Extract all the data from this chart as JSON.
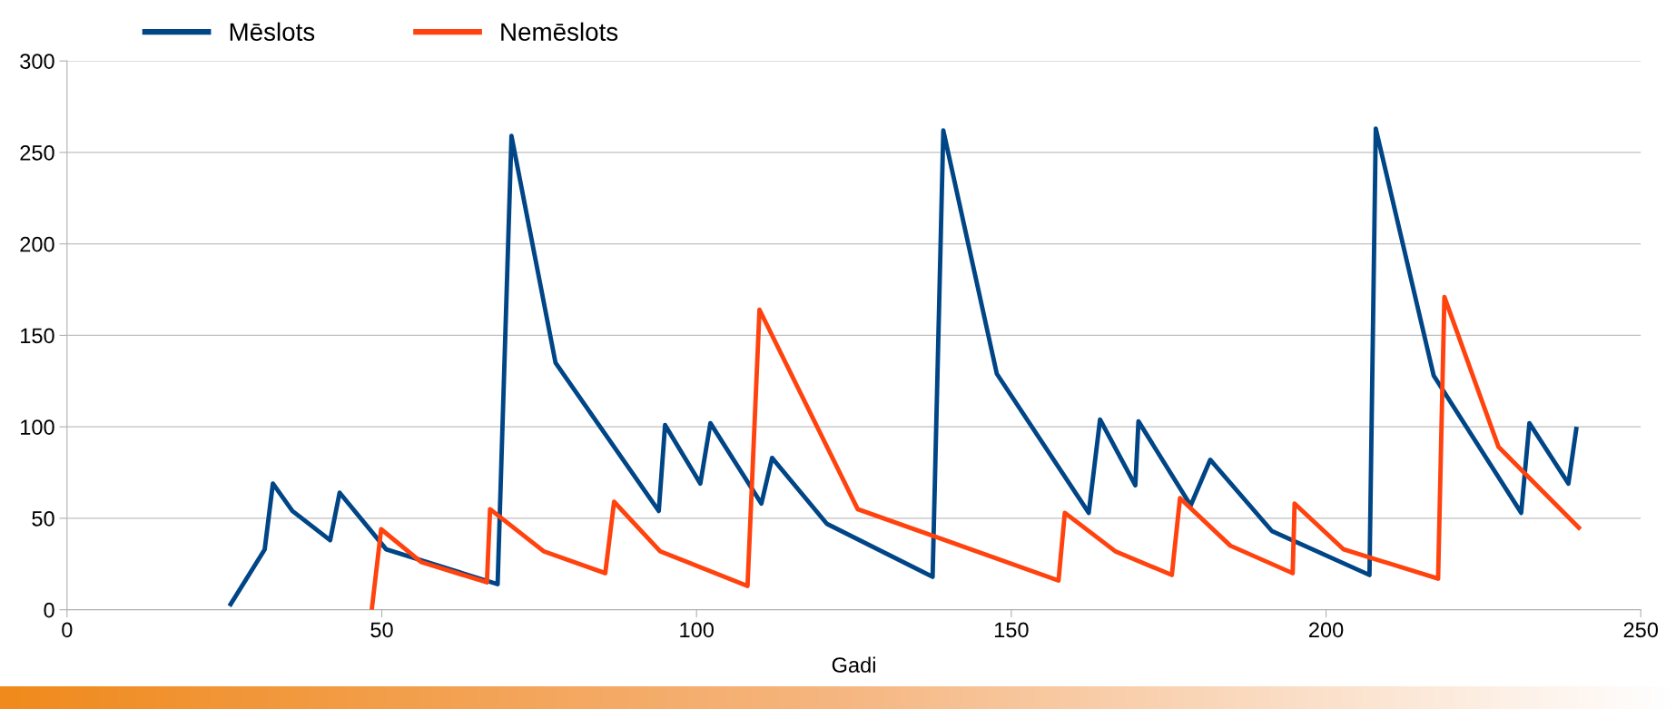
{
  "chart_data": {
    "type": "line",
    "xlabel": "Gadi",
    "xlim": [
      0,
      250
    ],
    "xticks": [
      0,
      50,
      100,
      150,
      200,
      250
    ],
    "ylim": [
      0,
      300
    ],
    "yticks": [
      0,
      50,
      100,
      150,
      200,
      250,
      300
    ],
    "grid": "y",
    "legend": "top left",
    "marker": "none",
    "line_style": "solid",
    "series": [
      {
        "name": "Mēslots",
        "color": "#004586",
        "x": [
          25.8,
          31.4,
          32.7,
          35.8,
          41.8,
          43.3,
          50.7,
          68.4,
          70.6,
          77.6,
          94,
          95,
          100.6,
          102.2,
          110.3,
          112,
          120.7,
          137.5,
          139.2,
          147.7,
          162.3,
          164.1,
          169.7,
          170.2,
          178.5,
          181.6,
          191.4,
          206.9,
          207.9,
          217.1,
          231,
          232.3,
          238.5,
          239.8
        ],
        "values": [
          2,
          33,
          69,
          54,
          38,
          64,
          33,
          14,
          259,
          135,
          54,
          101,
          69,
          102,
          58,
          83,
          47,
          18,
          262,
          129,
          53,
          104,
          68,
          103,
          57,
          82,
          43,
          19,
          263,
          128,
          53,
          102,
          69,
          100
        ]
      },
      {
        "name": "Nemēslots",
        "color": "#ff420e",
        "x": [
          48.4,
          49.9,
          56.3,
          66.7,
          67.2,
          75.7,
          85.5,
          86.9,
          94.2,
          108.1,
          110,
          125.6,
          157.5,
          158.5,
          166.5,
          175.5,
          176.8,
          184.8,
          194.7,
          195,
          202.8,
          217.8,
          218.8,
          227.4,
          240.4
        ],
        "values": [
          0,
          44,
          26,
          15,
          55,
          32,
          20,
          59,
          32,
          13,
          164,
          55,
          16,
          53,
          32,
          19,
          61,
          35,
          20,
          58,
          33,
          17,
          171,
          89,
          44
        ]
      }
    ]
  }
}
